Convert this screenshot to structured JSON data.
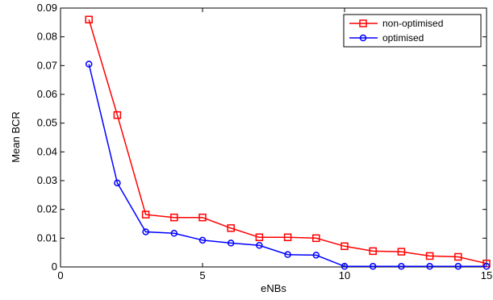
{
  "chart_data": {
    "type": "line",
    "xlabel": "eNBs",
    "ylabel": "Mean BCR",
    "xlim": [
      0,
      15
    ],
    "ylim": [
      0,
      0.09
    ],
    "x_ticks": [
      "0",
      "5",
      "10",
      "15"
    ],
    "y_ticks": [
      "0",
      "0.01",
      "0.02",
      "0.03",
      "0.04",
      "0.05",
      "0.06",
      "0.07",
      "0.08",
      "0.09"
    ],
    "grid": false,
    "legend_position": "top-right",
    "x": [
      1,
      2,
      3,
      4,
      5,
      6,
      7,
      8,
      9,
      10,
      11,
      12,
      13,
      14,
      15
    ],
    "series": [
      {
        "name": "non-optimised",
        "color": "#ff0000",
        "marker": "square",
        "values": [
          0.086,
          0.0528,
          0.0182,
          0.0172,
          0.0172,
          0.0135,
          0.0103,
          0.0103,
          0.01,
          0.0072,
          0.0055,
          0.0053,
          0.0038,
          0.0035,
          0.0012
        ]
      },
      {
        "name": "optimised",
        "color": "#0000ff",
        "marker": "circle",
        "values": [
          0.0705,
          0.0292,
          0.0122,
          0.0117,
          0.0093,
          0.0083,
          0.0075,
          0.0043,
          0.0041,
          0.0002,
          0.0002,
          0.0002,
          0.0002,
          0.0002,
          0.0002
        ]
      }
    ]
  }
}
